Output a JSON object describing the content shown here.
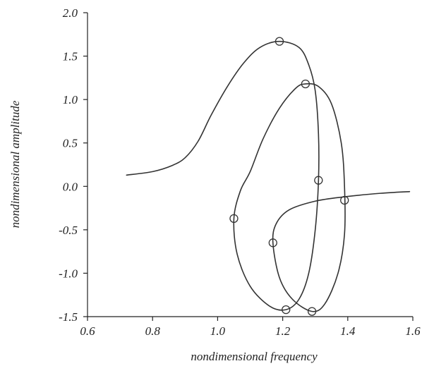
{
  "chart_data": {
    "type": "line",
    "title": "",
    "xlabel": "nondimensional frequency",
    "ylabel": "nondimensional amplitude",
    "xlim": [
      0.6,
      1.6
    ],
    "ylim": [
      -1.5,
      2.0
    ],
    "xticks": [
      0.6,
      0.8,
      1.0,
      1.2,
      1.4,
      1.6
    ],
    "yticks": [
      -1.5,
      -1.0,
      -0.5,
      0.0,
      0.5,
      1.0,
      1.5,
      2.0
    ],
    "xtick_labels": [
      "0.6",
      "0.8",
      "1.0",
      "1.2",
      "1.4",
      "1.6"
    ],
    "ytick_labels": [
      "-1.5",
      "-1.0",
      "-0.5",
      "0.0",
      "0.5",
      "1.0",
      "1.5",
      "2.0"
    ],
    "grid": false,
    "legend": "none",
    "series": [
      {
        "points": [
          [
            0.72,
            0.13
          ],
          [
            0.8,
            0.17
          ],
          [
            0.86,
            0.24
          ],
          [
            0.9,
            0.33
          ],
          [
            0.94,
            0.52
          ],
          [
            0.98,
            0.82
          ],
          [
            1.03,
            1.15
          ],
          [
            1.08,
            1.42
          ],
          [
            1.13,
            1.6
          ],
          [
            1.19,
            1.67
          ],
          [
            1.25,
            1.6
          ],
          [
            1.28,
            1.4
          ],
          [
            1.3,
            1.1
          ],
          [
            1.31,
            0.6
          ],
          [
            1.31,
            0.07
          ],
          [
            1.3,
            -0.5
          ],
          [
            1.28,
            -1.0
          ],
          [
            1.25,
            -1.3
          ],
          [
            1.21,
            -1.42
          ],
          [
            1.16,
            -1.38
          ],
          [
            1.1,
            -1.15
          ],
          [
            1.06,
            -0.78
          ],
          [
            1.05,
            -0.37
          ],
          [
            1.07,
            -0.05
          ],
          [
            1.1,
            0.17
          ],
          [
            1.14,
            0.55
          ],
          [
            1.19,
            0.9
          ],
          [
            1.24,
            1.13
          ],
          [
            1.27,
            1.18
          ],
          [
            1.31,
            1.15
          ],
          [
            1.35,
            0.95
          ],
          [
            1.38,
            0.5
          ],
          [
            1.39,
            0.0
          ],
          [
            1.39,
            -0.55
          ],
          [
            1.37,
            -1.0
          ],
          [
            1.33,
            -1.35
          ],
          [
            1.29,
            -1.44
          ],
          [
            1.23,
            -1.3
          ],
          [
            1.19,
            -1.05
          ],
          [
            1.17,
            -0.65
          ],
          [
            1.18,
            -0.43
          ],
          [
            1.22,
            -0.27
          ],
          [
            1.3,
            -0.17
          ],
          [
            1.39,
            -0.12
          ],
          [
            1.5,
            -0.08
          ],
          [
            1.59,
            -0.06
          ]
        ]
      }
    ],
    "markers": [
      [
        1.19,
        1.67
      ],
      [
        1.27,
        1.18
      ],
      [
        1.31,
        0.07
      ],
      [
        1.39,
        -0.16
      ],
      [
        1.05,
        -0.37
      ],
      [
        1.17,
        -0.65
      ],
      [
        1.21,
        -1.42
      ],
      [
        1.29,
        -1.44
      ]
    ]
  }
}
